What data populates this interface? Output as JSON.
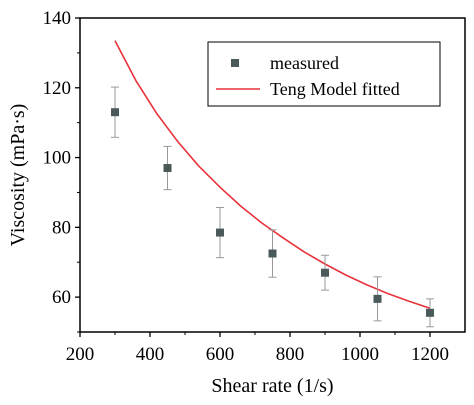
{
  "chart_data": {
    "type": "scatter",
    "title": "",
    "xlabel": "Shear rate (1/s)",
    "ylabel": "Viscosity (mPa·s)",
    "xlim": [
      200,
      1300
    ],
    "ylim": [
      50,
      140
    ],
    "xticks": [
      200,
      400,
      600,
      800,
      1000,
      1200
    ],
    "yticks": [
      60,
      80,
      100,
      120,
      140
    ],
    "grid": false,
    "legend_position": "top-right",
    "series": [
      {
        "name": "measured",
        "type": "scatter",
        "color": "#4a5a5a",
        "x": [
          300,
          450,
          600,
          750,
          900,
          1050,
          1200
        ],
        "y": [
          113,
          97,
          78.5,
          72.5,
          67,
          59.5,
          55.5
        ],
        "error": [
          7.2,
          6.2,
          7.2,
          6.8,
          5.0,
          6.3,
          4.0
        ]
      },
      {
        "name": "Teng Model fitted",
        "type": "line",
        "color": "#e8333c",
        "x": [
          300,
          360,
          420,
          480,
          540,
          600,
          660,
          720,
          780,
          840,
          900,
          960,
          1020,
          1080,
          1140,
          1200
        ],
        "y": [
          133.5,
          122.0,
          112.5,
          104.5,
          97.5,
          91.5,
          86.0,
          81.2,
          77.0,
          73.0,
          69.5,
          66.3,
          63.5,
          61.0,
          58.8,
          56.8
        ]
      }
    ]
  }
}
